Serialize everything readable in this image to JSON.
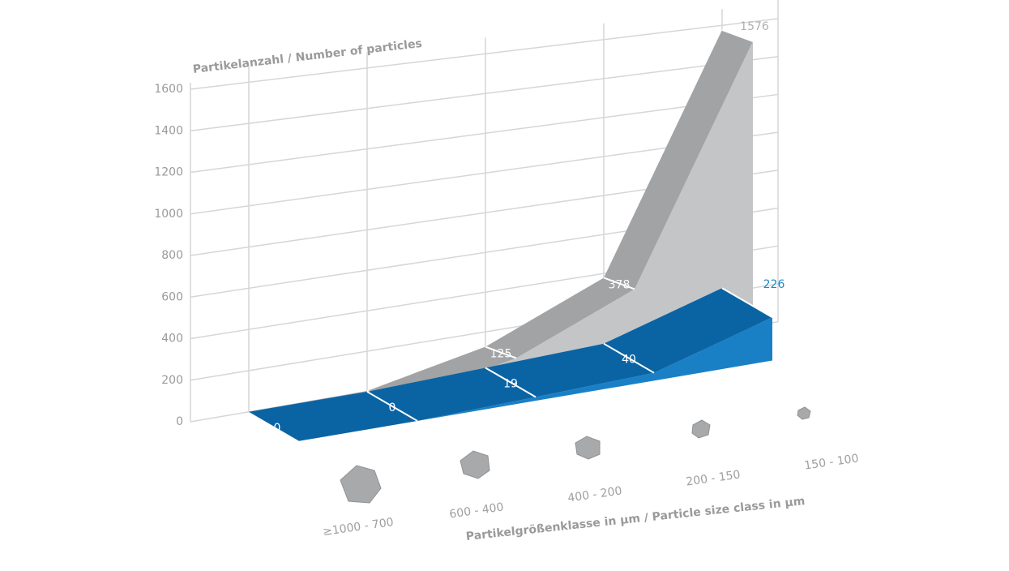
{
  "chart_data": {
    "type": "ribbon3d",
    "y_axis_title": "Partikelanzahl / Number of particles",
    "x_axis_title": "Partikelgrößenklasse in µm / Particle size class in µm",
    "categories": [
      "≥1000 - 700",
      "600 - 400",
      "400 - 200",
      "200 - 150",
      "150 - 100"
    ],
    "series": [
      {
        "color": "#a2a3a5",
        "values": [
          0,
          4,
          125,
          378,
          1576
        ]
      },
      {
        "color": "#0a64a4",
        "values": [
          0,
          0,
          19,
          40,
          226
        ]
      }
    ],
    "ylim": [
      0,
      1600
    ],
    "yticks": [
      0,
      200,
      400,
      600,
      800,
      1000,
      1200,
      1400,
      1600
    ],
    "grid": true
  }
}
